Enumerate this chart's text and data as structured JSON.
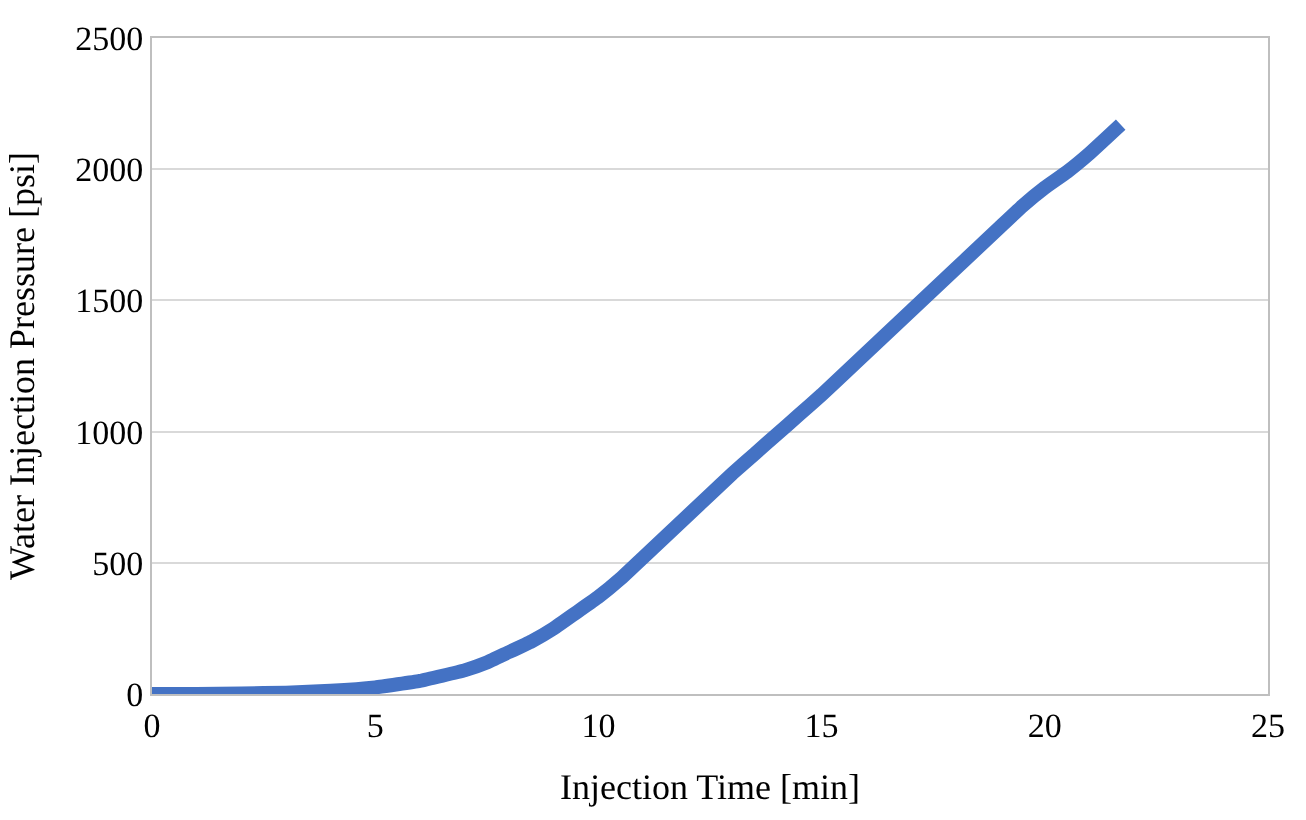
{
  "chart_data": {
    "type": "line",
    "xlabel": "Injection Time [min]",
    "ylabel": "Water Injection Pressure [psi]",
    "x": [
      0,
      1,
      2,
      3,
      4,
      5,
      6,
      7,
      7.5,
      8,
      8.5,
      9,
      9.5,
      10,
      10.5,
      11,
      11.5,
      12,
      12.5,
      13,
      13.5,
      14,
      14.5,
      15,
      15.5,
      16,
      16.5,
      17,
      17.5,
      18,
      18.5,
      19,
      19.5,
      20,
      20.5,
      21,
      21.7
    ],
    "series": [
      {
        "color": "#4472c4",
        "values": [
          0,
          0,
          2,
          5,
          12,
          25,
          50,
          90,
          120,
          160,
          200,
          250,
          310,
          370,
          440,
          520,
          600,
          680,
          760,
          840,
          915,
          990,
          1065,
          1140,
          1220,
          1300,
          1380,
          1460,
          1540,
          1620,
          1700,
          1780,
          1860,
          1930,
          1990,
          2060,
          2170
        ]
      }
    ],
    "xlim": [
      0,
      25
    ],
    "xticks": [
      0,
      5,
      10,
      15,
      20,
      25
    ],
    "ylim": [
      0,
      2500
    ],
    "yticks": [
      0,
      500,
      1000,
      1500,
      2000,
      2500
    ],
    "grid": "y",
    "marker": "none",
    "line_style": "solid"
  }
}
